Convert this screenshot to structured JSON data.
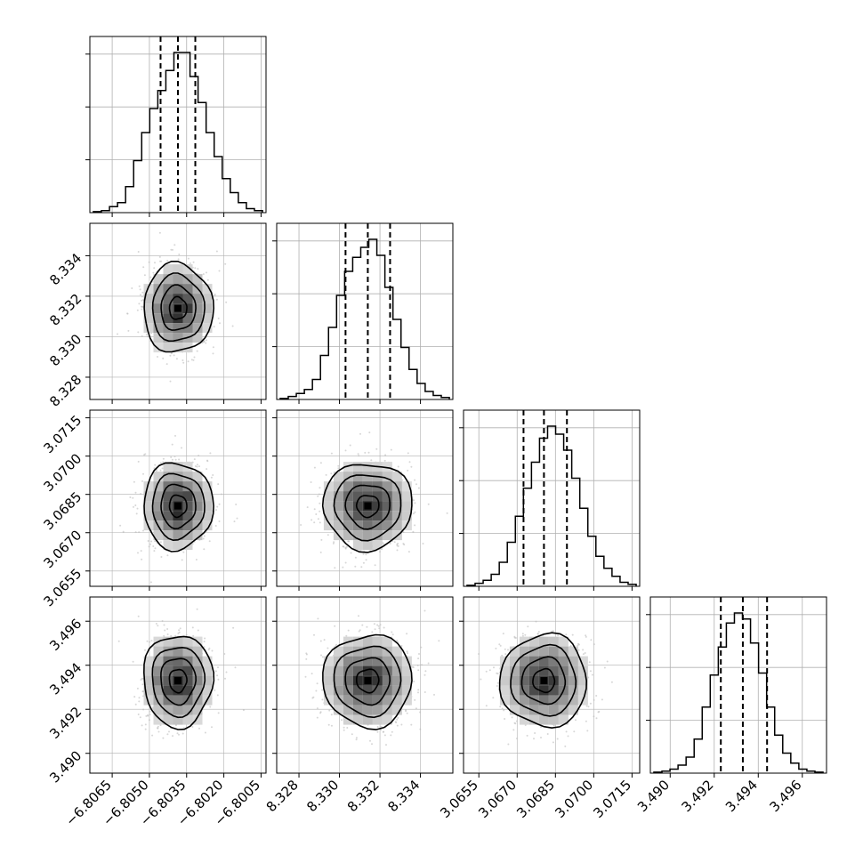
{
  "chart_data": {
    "type": "corner",
    "parameters": [
      {
        "index": 0,
        "range": [
          -6.8074,
          -6.8003
        ],
        "ticks": [
          -6.8065,
          -6.805,
          -6.8035,
          -6.802,
          -6.8005
        ],
        "tick_labels": [
          "−6.8065",
          "−6.8050",
          "−6.8035",
          "−6.8020",
          "−6.8005"
        ],
        "median": -6.80385,
        "q16": -6.80455,
        "q84": -6.80315,
        "hist_counts": [
          0.5,
          1,
          3,
          5,
          13,
          26,
          40,
          52,
          61,
          71,
          80,
          80,
          68,
          55,
          40,
          28,
          17,
          10,
          5,
          2,
          1
        ]
      },
      {
        "index": 1,
        "range": [
          8.3269,
          8.3356
        ],
        "ticks": [
          8.328,
          8.33,
          8.332,
          8.334
        ],
        "tick_labels": [
          "8.328",
          "8.330",
          "8.332",
          "8.334"
        ],
        "median": 8.3314,
        "q16": 8.3303,
        "q84": 8.3325,
        "hist_counts": [
          0.5,
          1.5,
          3,
          5,
          10,
          22,
          36,
          52,
          64,
          71,
          76,
          80,
          72,
          56,
          40,
          26,
          15,
          8,
          4,
          2,
          1
        ]
      },
      {
        "index": 2,
        "range": [
          3.0649,
          3.0718
        ],
        "ticks": [
          3.0655,
          3.067,
          3.0685,
          3.07,
          3.0715
        ],
        "tick_labels": [
          "3.0655",
          "3.0670",
          "3.0685",
          "3.0700",
          "3.0715"
        ],
        "median": 3.06805,
        "q16": 3.06725,
        "q84": 3.06895,
        "hist_counts": [
          0.5,
          1.5,
          3,
          6,
          12,
          22,
          35,
          49,
          62,
          74,
          80,
          76,
          68,
          54,
          39,
          25,
          15,
          9,
          5,
          2,
          1
        ]
      },
      {
        "index": 3,
        "range": [
          3.4891,
          3.4971
        ],
        "ticks": [
          3.49,
          3.492,
          3.494,
          3.496
        ],
        "tick_labels": [
          "3.490",
          "3.492",
          "3.494",
          "3.496"
        ],
        "median": 3.4933,
        "q16": 3.4923,
        "q84": 3.4944,
        "hist_counts": [
          0.5,
          1,
          2,
          4,
          8,
          17,
          33,
          49,
          63,
          75,
          80,
          77,
          65,
          50,
          33,
          19,
          10,
          5,
          2,
          1,
          0.5
        ]
      }
    ],
    "contour_levels": [
      "0.5-sigma",
      "1-sigma",
      "1.5-sigma",
      "2-sigma"
    ],
    "grid": true,
    "colors": {
      "line": "#000000",
      "grid": "#b0b0b0",
      "scatter": "#bdbdbd"
    }
  }
}
